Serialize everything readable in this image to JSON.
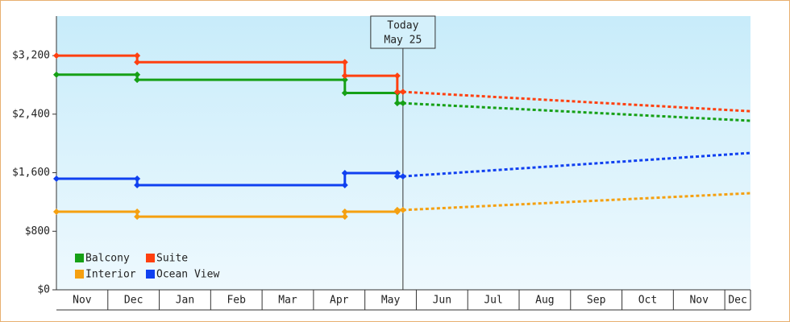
{
  "chart_data": {
    "type": "line",
    "xlim": [
      0,
      13.5
    ],
    "ylim": [
      0,
      3740
    ],
    "yticks": [
      {
        "value": 0,
        "label": "$0"
      },
      {
        "value": 800,
        "label": "$800"
      },
      {
        "value": 1600,
        "label": "$1,600"
      },
      {
        "value": 2400,
        "label": "$2,400"
      },
      {
        "value": 3200,
        "label": "$3,200"
      }
    ],
    "xticks": [
      {
        "value": 0.5,
        "label": "Nov"
      },
      {
        "value": 1.5,
        "label": "Dec"
      },
      {
        "value": 2.5,
        "label": "Jan"
      },
      {
        "value": 3.5,
        "label": "Feb"
      },
      {
        "value": 4.5,
        "label": "Mar"
      },
      {
        "value": 5.5,
        "label": "Apr"
      },
      {
        "value": 6.5,
        "label": "May"
      },
      {
        "value": 7.5,
        "label": "Jun"
      },
      {
        "value": 8.5,
        "label": "Jul"
      },
      {
        "value": 9.5,
        "label": "Aug"
      },
      {
        "value": 10.5,
        "label": "Sep"
      },
      {
        "value": 11.5,
        "label": "Oct"
      },
      {
        "value": 12.5,
        "label": "Nov"
      },
      {
        "value": 13.25,
        "label": "Dec"
      }
    ],
    "today": {
      "x": 6.74,
      "label": "Today",
      "date": "May 25"
    },
    "legend": "lower left",
    "series": [
      {
        "name": "Balcony",
        "color": "#16a016",
        "x": [
          0,
          1.57,
          1.57,
          5.61,
          5.61,
          6.63,
          6.63,
          6.74
        ],
        "values": [
          2940,
          2940,
          2870,
          2870,
          2690,
          2690,
          2550,
          2550
        ],
        "projection": {
          "x": [
            6.74,
            13.5
          ],
          "values": [
            2550,
            2310
          ]
        }
      },
      {
        "name": "Suite",
        "color": "#ff4010",
        "x": [
          0,
          1.57,
          1.57,
          5.61,
          5.61,
          6.63,
          6.63,
          6.74
        ],
        "values": [
          3200,
          3200,
          3110,
          3110,
          2925,
          2925,
          2705,
          2705
        ],
        "projection": {
          "x": [
            6.74,
            13.5
          ],
          "values": [
            2705,
            2440
          ]
        }
      },
      {
        "name": "Interior",
        "color": "#f5a010",
        "x": [
          0,
          1.57,
          1.57,
          5.61,
          5.61,
          6.63,
          6.63,
          6.74
        ],
        "values": [
          1067,
          1067,
          1000,
          1000,
          1067,
          1067,
          1090,
          1090
        ],
        "projection": {
          "x": [
            6.74,
            13.5
          ],
          "values": [
            1090,
            1320
          ]
        }
      },
      {
        "name": "Ocean View",
        "color": "#1040f0",
        "x": [
          0,
          1.57,
          1.57,
          5.61,
          5.61,
          6.63,
          6.63,
          6.74
        ],
        "values": [
          1518,
          1518,
          1430,
          1430,
          1595,
          1595,
          1550,
          1550
        ],
        "projection": {
          "x": [
            6.74,
            13.5
          ],
          "values": [
            1550,
            1870
          ]
        }
      }
    ]
  }
}
